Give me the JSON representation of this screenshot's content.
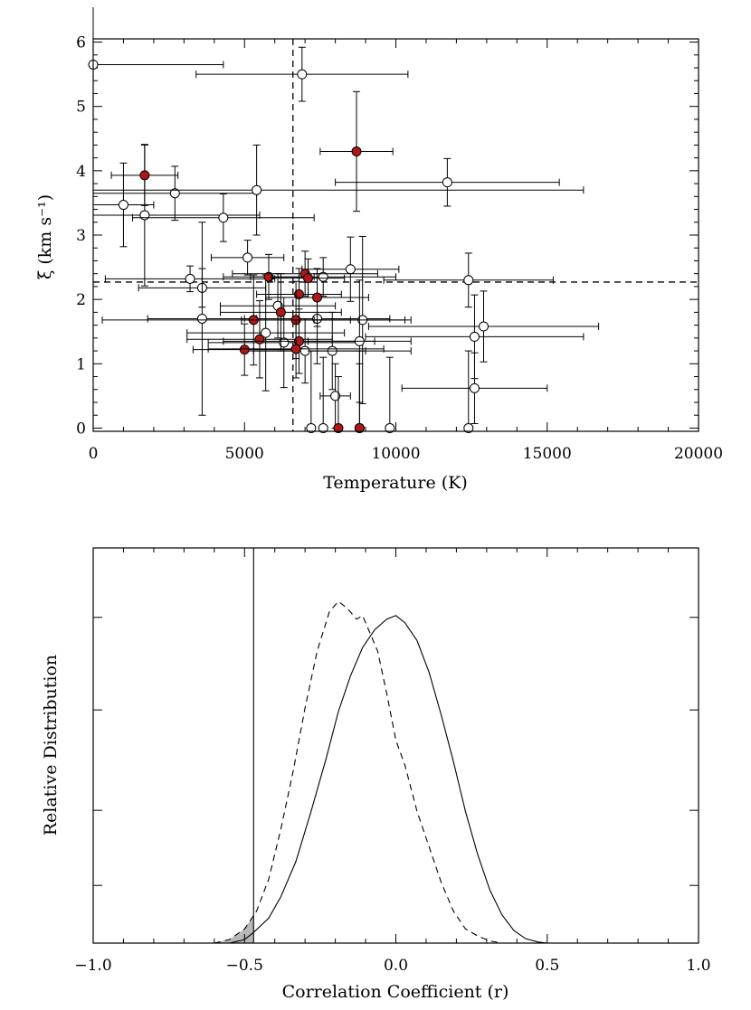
{
  "chart_data": [
    {
      "type": "scatter",
      "xlabel": "Temperature (K)",
      "ylabel": "ξ (km s⁻¹)",
      "xlim": [
        0,
        20000
      ],
      "ylim": [
        -0.05,
        6.05
      ],
      "xticks": [
        0,
        5000,
        10000,
        15000,
        20000
      ],
      "xtick_labels": [
        "0",
        "5000",
        "10000",
        "15000",
        "20000"
      ],
      "yticks": [
        0,
        1,
        2,
        3,
        4,
        5,
        6
      ],
      "ytick_labels": [
        "0",
        "1",
        "2",
        "3",
        "4",
        "5",
        "6"
      ],
      "ref_lines": {
        "x": 6600,
        "y": 2.27
      },
      "fill_color": "#b01818",
      "series": [
        {
          "name": "open",
          "points": [
            {
              "x": 0,
              "y": 5.65,
              "xerr": 4300,
              "yerr": 0
            },
            {
              "x": 6900,
              "y": 5.5,
              "xerr": 3500,
              "yerr": 0.42
            },
            {
              "x": 1000,
              "y": 3.47,
              "xerr": 1000,
              "yerr": 0.65
            },
            {
              "x": 1700,
              "y": 3.31,
              "xerr": 3800,
              "yerr": 1.1
            },
            {
              "x": 2700,
              "y": 3.65,
              "xerr": 2700,
              "yerr": 0.42
            },
            {
              "x": 4300,
              "y": 3.27,
              "xerr": 3000,
              "yerr": 0.37
            },
            {
              "x": 5400,
              "y": 3.7,
              "xerr": 10800,
              "yerr": 0.7
            },
            {
              "x": 11700,
              "y": 3.82,
              "xerr": 3700,
              "yerr": 0.37
            },
            {
              "x": 5100,
              "y": 2.65,
              "xerr": 1200,
              "yerr": 0.27
            },
            {
              "x": 3200,
              "y": 2.32,
              "xerr": 2800,
              "yerr": 0.2
            },
            {
              "x": 3600,
              "y": 2.18,
              "xerr": 2100,
              "yerr": 0.3
            },
            {
              "x": 3600,
              "y": 1.7,
              "xerr": 1800,
              "yerr": 1.5
            },
            {
              "x": 6100,
              "y": 1.9,
              "xerr": 1900,
              "yerr": 0.5
            },
            {
              "x": 7600,
              "y": 2.35,
              "xerr": 2400,
              "yerr": 0.3
            },
            {
              "x": 8500,
              "y": 2.47,
              "xerr": 1600,
              "yerr": 0.5
            },
            {
              "x": 12400,
              "y": 2.3,
              "xerr": 2800,
              "yerr": 0.42
            },
            {
              "x": 7400,
              "y": 1.7,
              "xerr": 2400,
              "yerr": 0.7
            },
            {
              "x": 8900,
              "y": 1.68,
              "xerr": 1600,
              "yerr": 1.3
            },
            {
              "x": 5700,
              "y": 1.48,
              "xerr": 2600,
              "yerr": 0.9
            },
            {
              "x": 6300,
              "y": 1.33,
              "xerr": 2500,
              "yerr": 0.7
            },
            {
              "x": 8800,
              "y": 1.35,
              "xerr": 1700,
              "yerr": 0.95
            },
            {
              "x": 12600,
              "y": 1.42,
              "xerr": 3600,
              "yerr": 0.65
            },
            {
              "x": 12900,
              "y": 1.58,
              "xerr": 3800,
              "yerr": 0.55
            },
            {
              "x": 7900,
              "y": 1.2,
              "xerr": 2600,
              "yerr": 0.6
            },
            {
              "x": 7000,
              "y": 1.2,
              "xerr": 2000,
              "yerr": 0.5
            },
            {
              "x": 8000,
              "y": 0.5,
              "xerr": 500,
              "yerr": 0.5
            },
            {
              "x": 12600,
              "y": 0.62,
              "xerr": 2400,
              "yerr": 0.55
            },
            {
              "x": 7200,
              "y": 0,
              "xerr": 0,
              "yerr": 1.2
            },
            {
              "x": 7600,
              "y": 0,
              "xerr": 0,
              "yerr": 1.1
            },
            {
              "x": 8800,
              "y": 0,
              "xerr": 0,
              "yerr": 1.2
            },
            {
              "x": 9800,
              "y": 0,
              "xerr": 0,
              "yerr": 1.1
            },
            {
              "x": 12400,
              "y": 0,
              "xerr": 0,
              "yerr": 1.2
            }
          ]
        },
        {
          "name": "filled",
          "points": [
            {
              "x": 1700,
              "y": 3.93,
              "xerr": 1100,
              "yerr": 0.47
            },
            {
              "x": 8700,
              "y": 4.3,
              "xerr": 1200,
              "yerr": 0.93
            },
            {
              "x": 5800,
              "y": 2.35,
              "xerr": 1500,
              "yerr": 0.35
            },
            {
              "x": 7000,
              "y": 2.4,
              "xerr": 2400,
              "yerr": 0.35
            },
            {
              "x": 7100,
              "y": 2.33,
              "xerr": 1200,
              "yerr": 0.3
            },
            {
              "x": 6800,
              "y": 2.08,
              "xerr": 1400,
              "yerr": 0.4
            },
            {
              "x": 7400,
              "y": 2.03,
              "xerr": 1700,
              "yerr": 0.45
            },
            {
              "x": 6200,
              "y": 1.8,
              "xerr": 2000,
              "yerr": 0.6
            },
            {
              "x": 5300,
              "y": 1.68,
              "xerr": 5000,
              "yerr": 0.7
            },
            {
              "x": 6700,
              "y": 1.68,
              "xerr": 1800,
              "yerr": 0.6
            },
            {
              "x": 5500,
              "y": 1.38,
              "xerr": 2400,
              "yerr": 0.6
            },
            {
              "x": 6800,
              "y": 1.35,
              "xerr": 2500,
              "yerr": 0.5
            },
            {
              "x": 5000,
              "y": 1.22,
              "xerr": 1700,
              "yerr": 0.4
            },
            {
              "x": 6700,
              "y": 1.23,
              "xerr": 2900,
              "yerr": 0.45
            },
            {
              "x": 8100,
              "y": 0,
              "xerr": 0,
              "yerr": 0.8
            },
            {
              "x": 8800,
              "y": 0,
              "xerr": 0,
              "yerr": 1.0
            }
          ]
        }
      ]
    },
    {
      "type": "line",
      "xlabel": "Correlation Coefficient (r)",
      "ylabel": "Relative Distribution",
      "xlim": [
        -1.0,
        1.0
      ],
      "ylim": [
        0,
        1.11
      ],
      "xticks": [
        -1.0,
        -0.5,
        0.0,
        0.5,
        1.0
      ],
      "xtick_labels": [
        "−1.0",
        "−0.5",
        "0.0",
        "0.5",
        "1.0"
      ],
      "yticks": [
        0.162,
        0.373,
        0.655,
        0.915
      ],
      "vline": -0.47,
      "series": [
        {
          "name": "solid",
          "x": [
            -0.55,
            -0.5,
            -0.47,
            -0.42,
            -0.38,
            -0.33,
            -0.28,
            -0.23,
            -0.19,
            -0.15,
            -0.11,
            -0.07,
            -0.03,
            0.0,
            0.03,
            0.07,
            0.11,
            0.15,
            0.19,
            0.23,
            0.27,
            0.31,
            0.35,
            0.39,
            0.43,
            0.47,
            0.5
          ],
          "y": [
            0.0,
            0.01,
            0.03,
            0.07,
            0.13,
            0.23,
            0.37,
            0.52,
            0.65,
            0.75,
            0.83,
            0.88,
            0.91,
            0.92,
            0.9,
            0.85,
            0.76,
            0.64,
            0.51,
            0.37,
            0.25,
            0.15,
            0.08,
            0.035,
            0.012,
            0.003,
            0.0
          ]
        },
        {
          "name": "dashed",
          "x": [
            -0.6,
            -0.55,
            -0.5,
            -0.46,
            -0.42,
            -0.38,
            -0.34,
            -0.3,
            -0.26,
            -0.22,
            -0.19,
            -0.16,
            -0.13,
            -0.11,
            -0.09,
            -0.06,
            -0.03,
            0.0,
            0.03,
            0.07,
            0.11,
            0.15,
            0.19,
            0.23,
            0.27,
            0.31,
            0.35
          ],
          "y": [
            0.0,
            0.01,
            0.04,
            0.09,
            0.18,
            0.32,
            0.48,
            0.66,
            0.82,
            0.93,
            0.96,
            0.94,
            0.91,
            0.92,
            0.88,
            0.82,
            0.7,
            0.57,
            0.5,
            0.37,
            0.27,
            0.17,
            0.09,
            0.04,
            0.02,
            0.006,
            0.0
          ]
        }
      ]
    }
  ]
}
